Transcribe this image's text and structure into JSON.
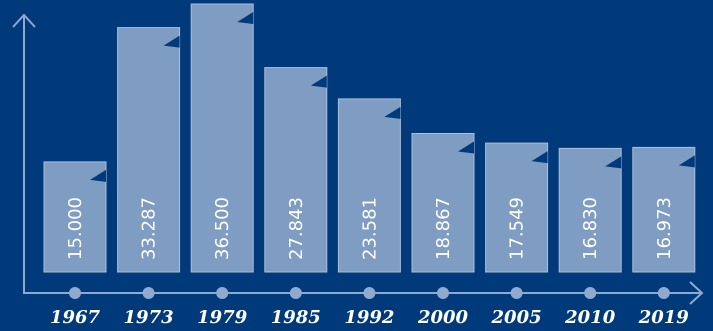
{
  "colors": {
    "background": "#003a7a",
    "bar": "#7f9cc2",
    "axis": "#8fa9cf",
    "text": "#ffffff"
  },
  "chart_data": {
    "type": "bar",
    "title": "",
    "xlabel": "",
    "ylabel": "",
    "categories": [
      "1967",
      "1973",
      "1979",
      "1985",
      "1992",
      "2000",
      "2005",
      "2010",
      "2019"
    ],
    "values": [
      15000,
      33287,
      36500,
      27843,
      23581,
      18867,
      17549,
      16830,
      16973
    ],
    "value_labels": [
      "15.000",
      "33.287",
      "36.500",
      "27.843",
      "23.581",
      "18.867",
      "17.549",
      "16.830",
      "16.973"
    ],
    "ylim": [
      0,
      36500
    ],
    "grid": false,
    "legend": "none"
  }
}
